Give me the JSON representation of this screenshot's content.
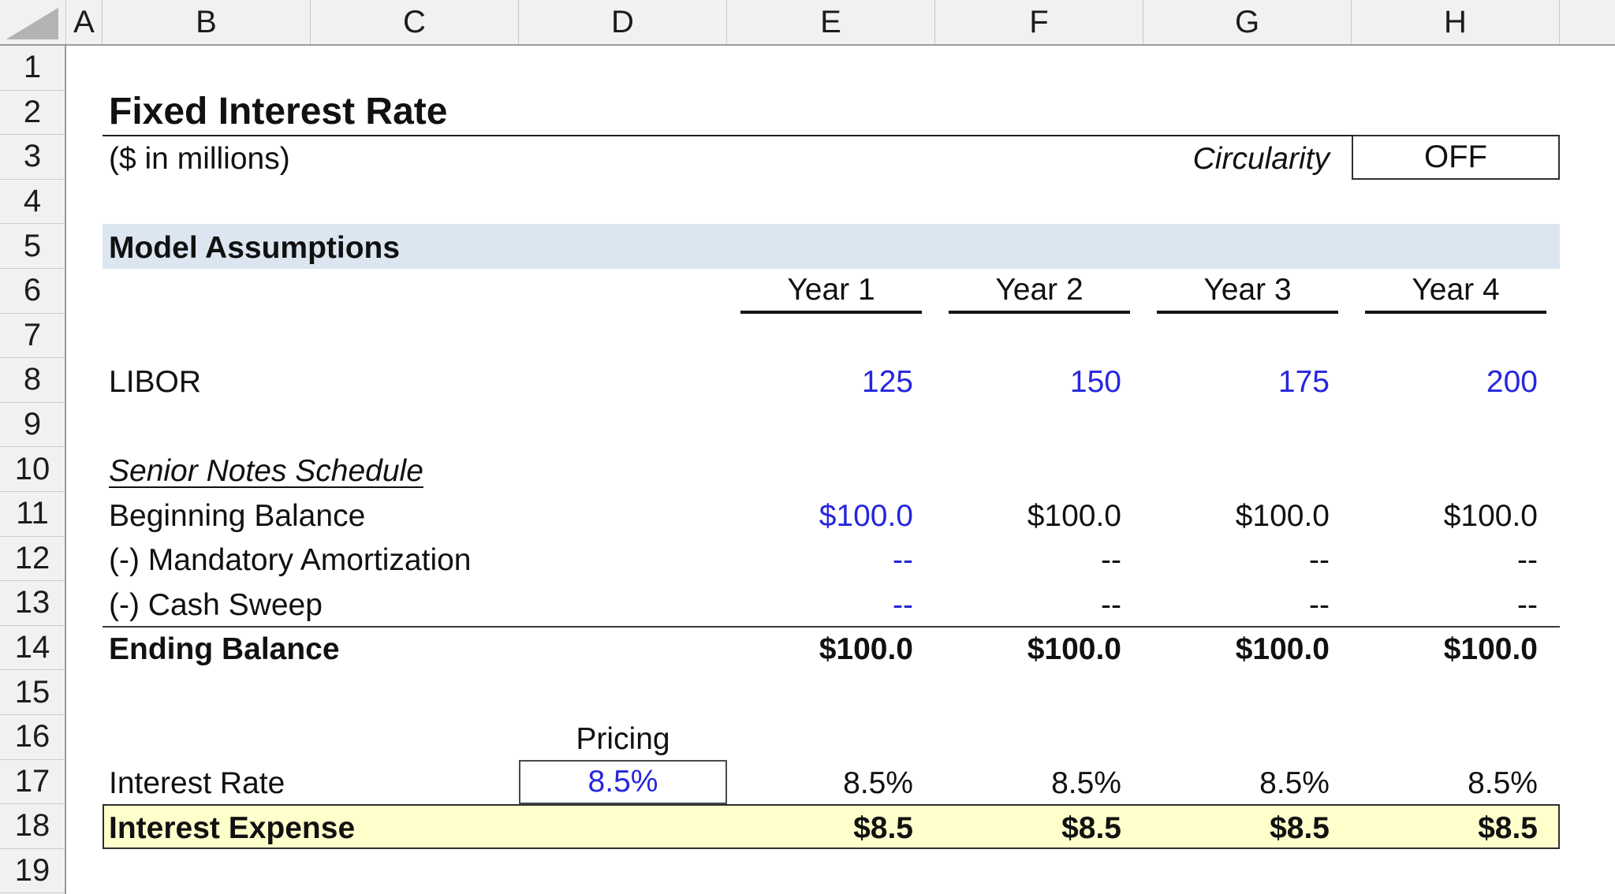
{
  "grid": {
    "column_headers": [
      "A",
      "B",
      "C",
      "D",
      "E",
      "F",
      "G",
      "H"
    ],
    "row_headers": [
      "1",
      "2",
      "3",
      "4",
      "5",
      "6",
      "7",
      "8",
      "9",
      "10",
      "11",
      "12",
      "13",
      "14",
      "15",
      "16",
      "17",
      "18",
      "19"
    ]
  },
  "sheet": {
    "title": "Fixed Interest Rate",
    "subtitle": "($ in millions)",
    "circularity": {
      "label": "Circularity",
      "value": "OFF"
    },
    "section_header": "Model Assumptions",
    "year_headers": [
      "Year 1",
      "Year 2",
      "Year 3",
      "Year 4"
    ],
    "libor": {
      "label": "LIBOR",
      "values": [
        "125",
        "150",
        "175",
        "200"
      ]
    },
    "schedule": {
      "header": "Senior Notes Schedule",
      "rows": [
        {
          "label": "Beginning Balance",
          "values": [
            "$100.0",
            "$100.0",
            "$100.0",
            "$100.0"
          ]
        },
        {
          "label": "(-) Mandatory Amortization",
          "values": [
            "--",
            "--",
            "--",
            "--"
          ]
        },
        {
          "label": "(-) Cash Sweep",
          "values": [
            "--",
            "--",
            "--",
            "--"
          ]
        },
        {
          "label": "Ending Balance",
          "values": [
            "$100.0",
            "$100.0",
            "$100.0",
            "$100.0"
          ]
        }
      ]
    },
    "pricing_label": "Pricing",
    "interest_rate": {
      "label": "Interest Rate",
      "input": "8.5%",
      "values": [
        "8.5%",
        "8.5%",
        "8.5%",
        "8.5%"
      ]
    },
    "interest_expense": {
      "label": "Interest Expense",
      "values": [
        "$8.5",
        "$8.5",
        "$8.5",
        "$8.5"
      ]
    }
  },
  "colors": {
    "input_text_blue": "#2626DF",
    "section_band_blue": "#DCE6F1",
    "highlight_yellow": "#FFFFCC",
    "header_chrome_gray": "#F1F1F1"
  }
}
